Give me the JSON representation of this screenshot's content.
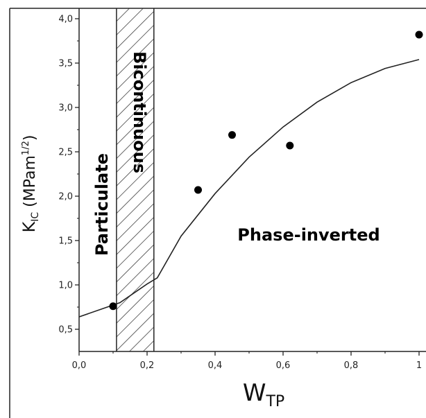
{
  "chart_data": {
    "type": "scatter",
    "xlabel": {
      "main": "W",
      "sub": "TP"
    },
    "ylabel": {
      "main": "K",
      "sub": "IC",
      "rest": " (MPam",
      "sup": "1/2",
      "close": ")"
    },
    "xlim": [
      0.0,
      1.0
    ],
    "ylim": [
      0.25,
      4.0
    ],
    "x_ticks": [
      "0,0",
      "0,2",
      "0,4",
      "0,6",
      "0,8",
      "1"
    ],
    "y_ticks": [
      "0,5",
      "1,0",
      "1,5",
      "2,0",
      "2,5",
      "3,0",
      "3,5",
      "4,0"
    ],
    "series": [
      {
        "type": "scatter",
        "x": [
          0.1,
          0.35,
          0.45,
          0.62,
          1.0
        ],
        "y": [
          0.76,
          2.07,
          2.69,
          2.57,
          3.82
        ]
      },
      {
        "type": "line",
        "x": [
          0.0,
          0.12,
          0.2,
          0.23,
          0.3,
          0.4,
          0.5,
          0.6,
          0.7,
          0.8,
          0.9,
          1.0
        ],
        "y": [
          0.64,
          0.8,
          1.01,
          1.08,
          1.55,
          2.03,
          2.44,
          2.78,
          3.06,
          3.28,
          3.44,
          3.54
        ]
      }
    ],
    "shaded_region": {
      "x": [
        0.11,
        0.22
      ],
      "pattern": "hatched"
    },
    "annotations": [
      {
        "text": "Particulate"
      },
      {
        "text": "Bicontinuous"
      },
      {
        "text": "Phase-inverted"
      }
    ],
    "grid": false,
    "legend": "none"
  }
}
